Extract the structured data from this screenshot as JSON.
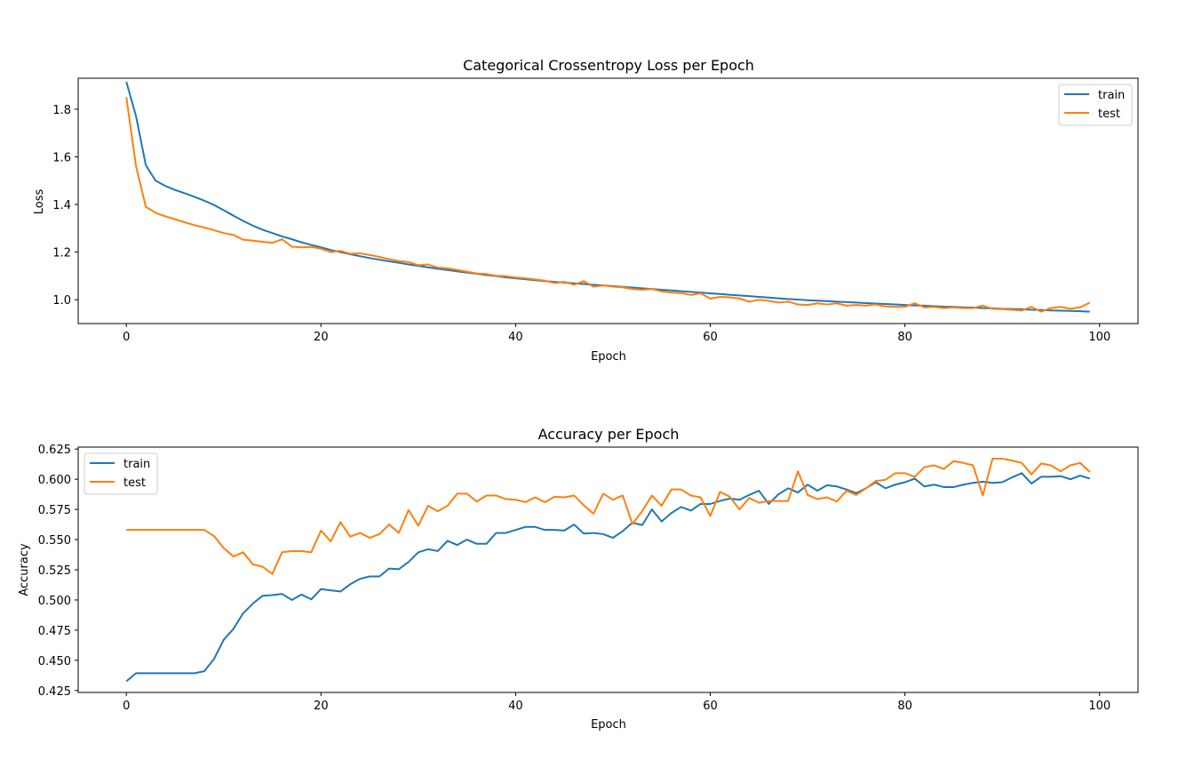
{
  "colors": {
    "train": "#1f77b4",
    "test": "#ff7f0e",
    "axes": "#000000",
    "legend_border": "#cccccc"
  },
  "chart_data": [
    {
      "type": "line",
      "title": "Categorical Crossentropy Loss per Epoch",
      "xlabel": "Epoch",
      "ylabel": "Loss",
      "xlim": [
        -4.95,
        103.95
      ],
      "ylim": [
        0.9,
        1.93
      ],
      "xticks": [
        0,
        20,
        40,
        60,
        80,
        100
      ],
      "xtick_labels": [
        "0",
        "20",
        "40",
        "60",
        "80",
        "100"
      ],
      "yticks": [
        1.0,
        1.2,
        1.4,
        1.6,
        1.8
      ],
      "ytick_labels": [
        "1.0",
        "1.2",
        "1.4",
        "1.6",
        "1.8"
      ],
      "grid": false,
      "legend": "upper right",
      "series": [
        {
          "name": "train",
          "values": [
            1.915,
            1.77,
            1.565,
            1.5,
            1.478,
            1.461,
            1.447,
            1.432,
            1.416,
            1.398,
            1.376,
            1.353,
            1.331,
            1.311,
            1.294,
            1.28,
            1.266,
            1.254,
            1.241,
            1.23,
            1.22,
            1.209,
            1.2,
            1.191,
            1.183,
            1.175,
            1.168,
            1.161,
            1.155,
            1.148,
            1.142,
            1.136,
            1.13,
            1.125,
            1.119,
            1.114,
            1.109,
            1.104,
            1.099,
            1.094,
            1.09,
            1.086,
            1.082,
            1.078,
            1.075,
            1.072,
            1.069,
            1.066,
            1.063,
            1.06,
            1.057,
            1.054,
            1.051,
            1.048,
            1.045,
            1.042,
            1.039,
            1.036,
            1.033,
            1.03,
            1.027,
            1.024,
            1.021,
            1.018,
            1.015,
            1.012,
            1.009,
            1.006,
            1.003,
            1.001,
            0.998,
            0.996,
            0.994,
            0.992,
            0.99,
            0.988,
            0.986,
            0.984,
            0.982,
            0.98,
            0.978,
            0.976,
            0.975,
            0.973,
            0.971,
            0.97,
            0.968,
            0.967,
            0.965,
            0.964,
            0.962,
            0.961,
            0.96,
            0.958,
            0.957,
            0.955,
            0.954,
            0.953,
            0.952,
            0.95
          ]
        },
        {
          "name": "test",
          "values": [
            1.85,
            1.56,
            1.39,
            1.365,
            1.35,
            1.338,
            1.325,
            1.313,
            1.303,
            1.292,
            1.28,
            1.272,
            1.252,
            1.248,
            1.243,
            1.239,
            1.254,
            1.223,
            1.22,
            1.222,
            1.214,
            1.2,
            1.205,
            1.193,
            1.195,
            1.188,
            1.18,
            1.17,
            1.162,
            1.158,
            1.145,
            1.148,
            1.135,
            1.132,
            1.125,
            1.118,
            1.11,
            1.108,
            1.1,
            1.099,
            1.093,
            1.09,
            1.085,
            1.08,
            1.07,
            1.075,
            1.063,
            1.078,
            1.055,
            1.06,
            1.055,
            1.052,
            1.045,
            1.042,
            1.045,
            1.035,
            1.03,
            1.028,
            1.02,
            1.027,
            1.005,
            1.012,
            1.01,
            1.005,
            0.992,
            1.0,
            0.995,
            0.988,
            0.992,
            0.98,
            0.978,
            0.985,
            0.98,
            0.985,
            0.975,
            0.978,
            0.975,
            0.98,
            0.972,
            0.97,
            0.97,
            0.985,
            0.968,
            0.97,
            0.965,
            0.968,
            0.965,
            0.965,
            0.975,
            0.962,
            0.96,
            0.958,
            0.955,
            0.97,
            0.95,
            0.965,
            0.97,
            0.962,
            0.968,
            0.988
          ]
        }
      ]
    },
    {
      "type": "line",
      "title": "Accuracy per Epoch",
      "xlabel": "Epoch",
      "ylabel": "Accuracy",
      "xlim": [
        -4.95,
        103.95
      ],
      "ylim": [
        0.4234,
        0.6266
      ],
      "xticks": [
        0,
        20,
        40,
        60,
        80,
        100
      ],
      "xtick_labels": [
        "0",
        "20",
        "40",
        "60",
        "80",
        "100"
      ],
      "yticks": [
        0.425,
        0.45,
        0.475,
        0.5,
        0.525,
        0.55,
        0.575,
        0.6,
        0.625
      ],
      "ytick_labels": [
        "0.425",
        "0.450",
        "0.475",
        "0.500",
        "0.525",
        "0.550",
        "0.575",
        "0.600",
        "0.625"
      ],
      "grid": false,
      "legend": "upper left",
      "series": [
        {
          "name": "train",
          "values": [
            0.4327,
            0.4393,
            0.4393,
            0.4393,
            0.4393,
            0.4393,
            0.4393,
            0.4393,
            0.441,
            0.451,
            0.467,
            0.476,
            0.489,
            0.497,
            0.5035,
            0.504,
            0.505,
            0.5,
            0.5045,
            0.5005,
            0.509,
            0.508,
            0.507,
            0.513,
            0.5175,
            0.5195,
            0.5195,
            0.526,
            0.5255,
            0.5315,
            0.5395,
            0.542,
            0.5405,
            0.549,
            0.5455,
            0.55,
            0.5465,
            0.5465,
            0.5555,
            0.5555,
            0.558,
            0.5605,
            0.5605,
            0.558,
            0.558,
            0.5575,
            0.5625,
            0.555,
            0.5555,
            0.5545,
            0.5515,
            0.557,
            0.564,
            0.562,
            0.575,
            0.565,
            0.572,
            0.577,
            0.574,
            0.5795,
            0.5795,
            0.582,
            0.584,
            0.583,
            0.587,
            0.5905,
            0.5795,
            0.5875,
            0.5925,
            0.589,
            0.5955,
            0.5905,
            0.595,
            0.594,
            0.5915,
            0.5885,
            0.5925,
            0.5975,
            0.5925,
            0.5955,
            0.5975,
            0.6005,
            0.594,
            0.5955,
            0.5935,
            0.5935,
            0.5955,
            0.597,
            0.598,
            0.597,
            0.5975,
            0.6015,
            0.605,
            0.5965,
            0.602,
            0.602,
            0.6025,
            0.6,
            0.603,
            0.6005
          ]
        },
        {
          "name": "test",
          "values": [
            0.558,
            0.558,
            0.558,
            0.558,
            0.558,
            0.558,
            0.558,
            0.558,
            0.558,
            0.553,
            0.543,
            0.536,
            0.5395,
            0.5295,
            0.5275,
            0.5215,
            0.5395,
            0.5405,
            0.5405,
            0.5395,
            0.5575,
            0.5485,
            0.5645,
            0.5525,
            0.5555,
            0.5515,
            0.5545,
            0.5625,
            0.5555,
            0.5745,
            0.5615,
            0.578,
            0.5735,
            0.578,
            0.588,
            0.588,
            0.5815,
            0.5865,
            0.5865,
            0.5835,
            0.583,
            0.581,
            0.585,
            0.581,
            0.5855,
            0.585,
            0.5865,
            0.5785,
            0.5715,
            0.588,
            0.583,
            0.5865,
            0.563,
            0.5735,
            0.5865,
            0.578,
            0.5915,
            0.5915,
            0.5865,
            0.585,
            0.5695,
            0.5895,
            0.5855,
            0.575,
            0.5845,
            0.5805,
            0.582,
            0.582,
            0.582,
            0.6065,
            0.587,
            0.5835,
            0.585,
            0.5815,
            0.5905,
            0.587,
            0.5925,
            0.5985,
            0.5995,
            0.605,
            0.605,
            0.602,
            0.61,
            0.6115,
            0.6085,
            0.615,
            0.6135,
            0.6115,
            0.5865,
            0.617,
            0.617,
            0.6155,
            0.6135,
            0.604,
            0.613,
            0.6115,
            0.6065,
            0.6115,
            0.6135,
            0.606
          ]
        }
      ]
    }
  ]
}
